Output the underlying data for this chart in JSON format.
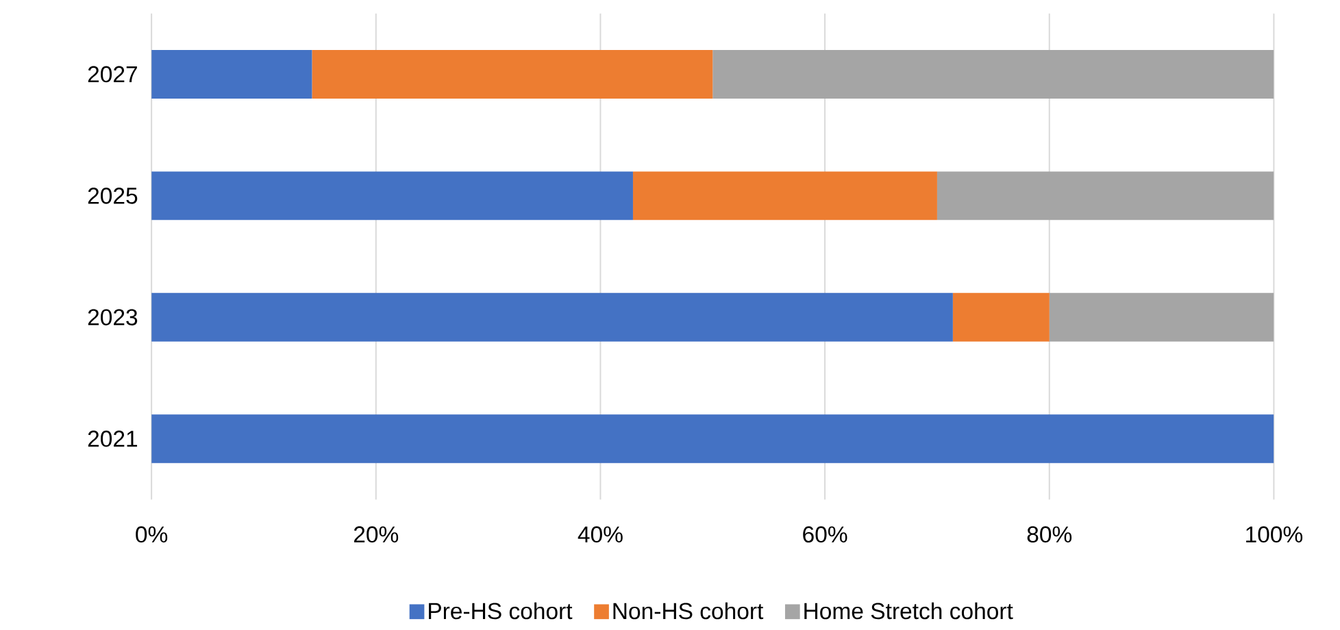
{
  "chart_data": {
    "type": "bar",
    "orientation": "horizontal",
    "stacked": true,
    "categories": [
      "2027",
      "2025",
      "2023",
      "2021"
    ],
    "series": [
      {
        "name": "Pre-HS cohort",
        "color": "#4472c4",
        "values": [
          14.3,
          42.9,
          71.4,
          100
        ]
      },
      {
        "name": "Non-HS cohort",
        "color": "#ed7d31",
        "values": [
          35.7,
          27.1,
          8.6,
          0
        ]
      },
      {
        "name": "Home Stretch cohort",
        "color": "#a5a5a5",
        "values": [
          50,
          30,
          20,
          0
        ]
      }
    ],
    "xlim": [
      0,
      100
    ],
    "xticks": [
      {
        "value": 0,
        "label": "0%"
      },
      {
        "value": 20,
        "label": "20%"
      },
      {
        "value": 40,
        "label": "40%"
      },
      {
        "value": 60,
        "label": "60%"
      },
      {
        "value": 80,
        "label": "80%"
      },
      {
        "value": 100,
        "label": "100%"
      }
    ],
    "grid": "x",
    "legend": "bottom"
  }
}
